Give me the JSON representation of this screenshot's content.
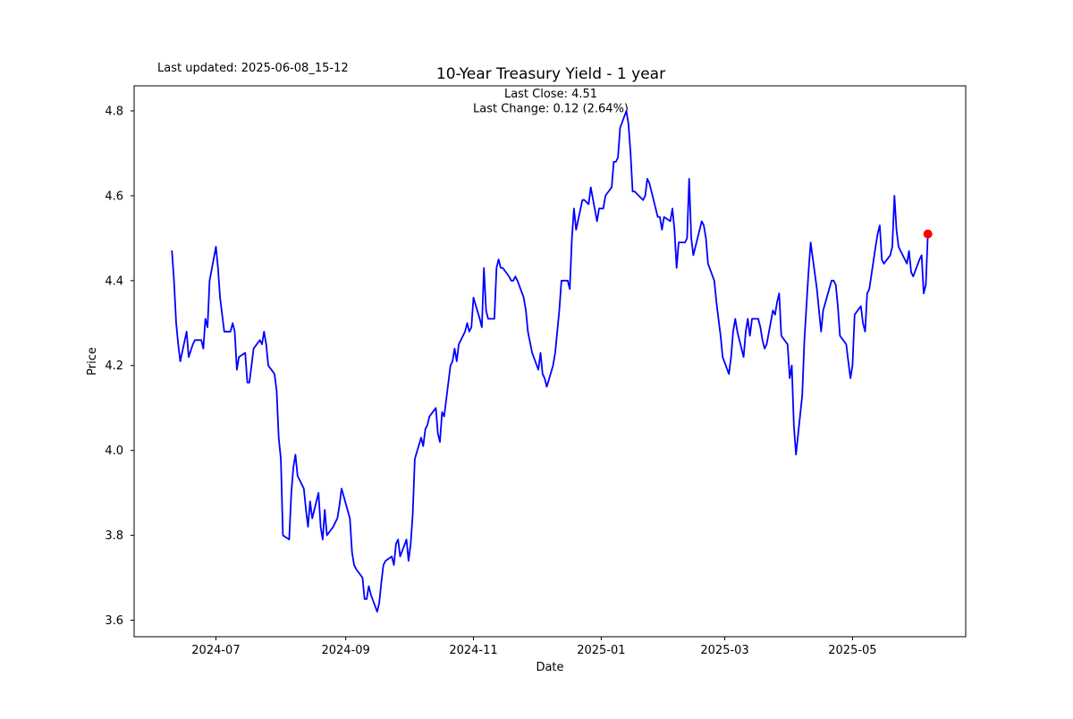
{
  "figure": {
    "last_updated": "Last updated: 2025-06-08_15-12"
  },
  "chart_data": {
    "type": "line",
    "title": "10-Year Treasury Yield - 1 year",
    "subtitle_lines": [
      "Last Close: 4.51",
      "Last Change: 0.12 (2.64%)"
    ],
    "xlabel": "Date",
    "ylabel": "Price",
    "last_close": 4.51,
    "last_change": 0.12,
    "last_change_pct": 2.64,
    "line_color": "#0000ff",
    "marker_color": "#ff0000",
    "grid": false,
    "legend": "none",
    "ylim": [
      3.561,
      4.859
    ],
    "x_margin": 0.05,
    "y_ticks": [
      3.6,
      3.8,
      4.0,
      4.2,
      4.4,
      4.6,
      4.8
    ],
    "x_ticks": [
      {
        "date": "2024-07-01",
        "label": "2024-07"
      },
      {
        "date": "2024-09-01",
        "label": "2024-09"
      },
      {
        "date": "2024-11-01",
        "label": "2024-11"
      },
      {
        "date": "2025-01-01",
        "label": "2025-01"
      },
      {
        "date": "2025-03-01",
        "label": "2025-03"
      },
      {
        "date": "2025-05-01",
        "label": "2025-05"
      }
    ],
    "series": [
      {
        "name": "10-Year Treasury Yield",
        "points": [
          [
            "2024-06-10",
            4.47
          ],
          [
            "2024-06-11",
            4.4
          ],
          [
            "2024-06-12",
            4.3
          ],
          [
            "2024-06-13",
            4.25
          ],
          [
            "2024-06-14",
            4.21
          ],
          [
            "2024-06-17",
            4.28
          ],
          [
            "2024-06-18",
            4.22
          ],
          [
            "2024-06-20",
            4.25
          ],
          [
            "2024-06-21",
            4.26
          ],
          [
            "2024-06-24",
            4.26
          ],
          [
            "2024-06-25",
            4.24
          ],
          [
            "2024-06-26",
            4.31
          ],
          [
            "2024-06-27",
            4.29
          ],
          [
            "2024-06-28",
            4.4
          ],
          [
            "2024-07-01",
            4.48
          ],
          [
            "2024-07-02",
            4.43
          ],
          [
            "2024-07-03",
            4.36
          ],
          [
            "2024-07-05",
            4.28
          ],
          [
            "2024-07-08",
            4.28
          ],
          [
            "2024-07-09",
            4.3
          ],
          [
            "2024-07-10",
            4.28
          ],
          [
            "2024-07-11",
            4.19
          ],
          [
            "2024-07-12",
            4.22
          ],
          [
            "2024-07-15",
            4.23
          ],
          [
            "2024-07-16",
            4.16
          ],
          [
            "2024-07-17",
            4.16
          ],
          [
            "2024-07-18",
            4.2
          ],
          [
            "2024-07-19",
            4.24
          ],
          [
            "2024-07-22",
            4.26
          ],
          [
            "2024-07-23",
            4.25
          ],
          [
            "2024-07-24",
            4.28
          ],
          [
            "2024-07-25",
            4.25
          ],
          [
            "2024-07-26",
            4.2
          ],
          [
            "2024-07-29",
            4.18
          ],
          [
            "2024-07-30",
            4.14
          ],
          [
            "2024-07-31",
            4.03
          ],
          [
            "2024-08-01",
            3.98
          ],
          [
            "2024-08-02",
            3.8
          ],
          [
            "2024-08-05",
            3.79
          ],
          [
            "2024-08-06",
            3.9
          ],
          [
            "2024-08-07",
            3.96
          ],
          [
            "2024-08-08",
            3.99
          ],
          [
            "2024-08-09",
            3.94
          ],
          [
            "2024-08-12",
            3.91
          ],
          [
            "2024-08-13",
            3.86
          ],
          [
            "2024-08-14",
            3.82
          ],
          [
            "2024-08-15",
            3.88
          ],
          [
            "2024-08-16",
            3.84
          ],
          [
            "2024-08-19",
            3.9
          ],
          [
            "2024-08-20",
            3.82
          ],
          [
            "2024-08-21",
            3.79
          ],
          [
            "2024-08-22",
            3.86
          ],
          [
            "2024-08-23",
            3.8
          ],
          [
            "2024-08-26",
            3.82
          ],
          [
            "2024-08-27",
            3.83
          ],
          [
            "2024-08-28",
            3.84
          ],
          [
            "2024-08-29",
            3.87
          ],
          [
            "2024-08-30",
            3.91
          ],
          [
            "2024-09-03",
            3.84
          ],
          [
            "2024-09-04",
            3.76
          ],
          [
            "2024-09-05",
            3.73
          ],
          [
            "2024-09-06",
            3.72
          ],
          [
            "2024-09-09",
            3.7
          ],
          [
            "2024-09-10",
            3.65
          ],
          [
            "2024-09-11",
            3.65
          ],
          [
            "2024-09-12",
            3.68
          ],
          [
            "2024-09-13",
            3.66
          ],
          [
            "2024-09-16",
            3.62
          ],
          [
            "2024-09-17",
            3.64
          ],
          [
            "2024-09-18",
            3.69
          ],
          [
            "2024-09-19",
            3.73
          ],
          [
            "2024-09-20",
            3.74
          ],
          [
            "2024-09-23",
            3.75
          ],
          [
            "2024-09-24",
            3.73
          ],
          [
            "2024-09-25",
            3.78
          ],
          [
            "2024-09-26",
            3.79
          ],
          [
            "2024-09-27",
            3.75
          ],
          [
            "2024-09-30",
            3.79
          ],
          [
            "2024-10-01",
            3.74
          ],
          [
            "2024-10-02",
            3.78
          ],
          [
            "2024-10-03",
            3.85
          ],
          [
            "2024-10-04",
            3.98
          ],
          [
            "2024-10-07",
            4.03
          ],
          [
            "2024-10-08",
            4.01
          ],
          [
            "2024-10-09",
            4.05
          ],
          [
            "2024-10-10",
            4.06
          ],
          [
            "2024-10-11",
            4.08
          ],
          [
            "2024-10-14",
            4.1
          ],
          [
            "2024-10-15",
            4.04
          ],
          [
            "2024-10-16",
            4.02
          ],
          [
            "2024-10-17",
            4.09
          ],
          [
            "2024-10-18",
            4.08
          ],
          [
            "2024-10-21",
            4.2
          ],
          [
            "2024-10-22",
            4.21
          ],
          [
            "2024-10-23",
            4.24
          ],
          [
            "2024-10-24",
            4.21
          ],
          [
            "2024-10-25",
            4.25
          ],
          [
            "2024-10-28",
            4.28
          ],
          [
            "2024-10-29",
            4.3
          ],
          [
            "2024-10-30",
            4.28
          ],
          [
            "2024-10-31",
            4.29
          ],
          [
            "2024-11-01",
            4.36
          ],
          [
            "2024-11-04",
            4.31
          ],
          [
            "2024-11-05",
            4.29
          ],
          [
            "2024-11-06",
            4.43
          ],
          [
            "2024-11-07",
            4.33
          ],
          [
            "2024-11-08",
            4.31
          ],
          [
            "2024-11-11",
            4.31
          ],
          [
            "2024-11-12",
            4.43
          ],
          [
            "2024-11-13",
            4.45
          ],
          [
            "2024-11-14",
            4.43
          ],
          [
            "2024-11-15",
            4.43
          ],
          [
            "2024-11-18",
            4.41
          ],
          [
            "2024-11-19",
            4.4
          ],
          [
            "2024-11-20",
            4.4
          ],
          [
            "2024-11-21",
            4.41
          ],
          [
            "2024-11-22",
            4.4
          ],
          [
            "2024-11-25",
            4.36
          ],
          [
            "2024-11-26",
            4.33
          ],
          [
            "2024-11-27",
            4.28
          ],
          [
            "2024-11-29",
            4.23
          ],
          [
            "2024-12-02",
            4.19
          ],
          [
            "2024-12-03",
            4.23
          ],
          [
            "2024-12-04",
            4.18
          ],
          [
            "2024-12-05",
            4.17
          ],
          [
            "2024-12-06",
            4.15
          ],
          [
            "2024-12-09",
            4.2
          ],
          [
            "2024-12-10",
            4.23
          ],
          [
            "2024-12-11",
            4.28
          ],
          [
            "2024-12-12",
            4.33
          ],
          [
            "2024-12-13",
            4.4
          ],
          [
            "2024-12-16",
            4.4
          ],
          [
            "2024-12-17",
            4.38
          ],
          [
            "2024-12-18",
            4.5
          ],
          [
            "2024-12-19",
            4.57
          ],
          [
            "2024-12-20",
            4.52
          ],
          [
            "2024-12-23",
            4.59
          ],
          [
            "2024-12-24",
            4.59
          ],
          [
            "2024-12-26",
            4.58
          ],
          [
            "2024-12-27",
            4.62
          ],
          [
            "2024-12-30",
            4.54
          ],
          [
            "2024-12-31",
            4.57
          ],
          [
            "2025-01-02",
            4.57
          ],
          [
            "2025-01-03",
            4.6
          ],
          [
            "2025-01-06",
            4.62
          ],
          [
            "2025-01-07",
            4.68
          ],
          [
            "2025-01-08",
            4.68
          ],
          [
            "2025-01-09",
            4.69
          ],
          [
            "2025-01-10",
            4.76
          ],
          [
            "2025-01-13",
            4.8
          ],
          [
            "2025-01-14",
            4.77
          ],
          [
            "2025-01-15",
            4.7
          ],
          [
            "2025-01-16",
            4.61
          ],
          [
            "2025-01-17",
            4.61
          ],
          [
            "2025-01-21",
            4.59
          ],
          [
            "2025-01-22",
            4.6
          ],
          [
            "2025-01-23",
            4.64
          ],
          [
            "2025-01-24",
            4.63
          ],
          [
            "2025-01-27",
            4.57
          ],
          [
            "2025-01-28",
            4.55
          ],
          [
            "2025-01-29",
            4.55
          ],
          [
            "2025-01-30",
            4.52
          ],
          [
            "2025-01-31",
            4.55
          ],
          [
            "2025-02-03",
            4.54
          ],
          [
            "2025-02-04",
            4.57
          ],
          [
            "2025-02-05",
            4.52
          ],
          [
            "2025-02-06",
            4.43
          ],
          [
            "2025-02-07",
            4.49
          ],
          [
            "2025-02-10",
            4.49
          ],
          [
            "2025-02-11",
            4.5
          ],
          [
            "2025-02-12",
            4.64
          ],
          [
            "2025-02-13",
            4.5
          ],
          [
            "2025-02-14",
            4.46
          ],
          [
            "2025-02-18",
            4.54
          ],
          [
            "2025-02-19",
            4.53
          ],
          [
            "2025-02-20",
            4.5
          ],
          [
            "2025-02-21",
            4.44
          ],
          [
            "2025-02-24",
            4.4
          ],
          [
            "2025-02-25",
            4.35
          ],
          [
            "2025-02-26",
            4.31
          ],
          [
            "2025-02-27",
            4.27
          ],
          [
            "2025-02-28",
            4.22
          ],
          [
            "2025-03-03",
            4.18
          ],
          [
            "2025-03-04",
            4.22
          ],
          [
            "2025-03-05",
            4.28
          ],
          [
            "2025-03-06",
            4.31
          ],
          [
            "2025-03-07",
            4.28
          ],
          [
            "2025-03-10",
            4.22
          ],
          [
            "2025-03-11",
            4.28
          ],
          [
            "2025-03-12",
            4.31
          ],
          [
            "2025-03-13",
            4.27
          ],
          [
            "2025-03-14",
            4.31
          ],
          [
            "2025-03-17",
            4.31
          ],
          [
            "2025-03-18",
            4.29
          ],
          [
            "2025-03-19",
            4.26
          ],
          [
            "2025-03-20",
            4.24
          ],
          [
            "2025-03-21",
            4.25
          ],
          [
            "2025-03-24",
            4.33
          ],
          [
            "2025-03-25",
            4.32
          ],
          [
            "2025-03-26",
            4.35
          ],
          [
            "2025-03-27",
            4.37
          ],
          [
            "2025-03-28",
            4.27
          ],
          [
            "2025-03-31",
            4.25
          ],
          [
            "2025-04-01",
            4.17
          ],
          [
            "2025-04-02",
            4.2
          ],
          [
            "2025-04-03",
            4.06
          ],
          [
            "2025-04-04",
            3.99
          ],
          [
            "2025-04-07",
            4.13
          ],
          [
            "2025-04-08",
            4.26
          ],
          [
            "2025-04-09",
            4.34
          ],
          [
            "2025-04-10",
            4.42
          ],
          [
            "2025-04-11",
            4.49
          ],
          [
            "2025-04-14",
            4.38
          ],
          [
            "2025-04-15",
            4.33
          ],
          [
            "2025-04-16",
            4.28
          ],
          [
            "2025-04-17",
            4.33
          ],
          [
            "2025-04-21",
            4.4
          ],
          [
            "2025-04-22",
            4.4
          ],
          [
            "2025-04-23",
            4.39
          ],
          [
            "2025-04-24",
            4.34
          ],
          [
            "2025-04-25",
            4.27
          ],
          [
            "2025-04-28",
            4.25
          ],
          [
            "2025-04-29",
            4.21
          ],
          [
            "2025-04-30",
            4.17
          ],
          [
            "2025-05-01",
            4.2
          ],
          [
            "2025-05-02",
            4.32
          ],
          [
            "2025-05-05",
            4.34
          ],
          [
            "2025-05-06",
            4.3
          ],
          [
            "2025-05-07",
            4.28
          ],
          [
            "2025-05-08",
            4.37
          ],
          [
            "2025-05-09",
            4.38
          ],
          [
            "2025-05-12",
            4.48
          ],
          [
            "2025-05-13",
            4.51
          ],
          [
            "2025-05-14",
            4.53
          ],
          [
            "2025-05-15",
            4.45
          ],
          [
            "2025-05-16",
            4.44
          ],
          [
            "2025-05-19",
            4.46
          ],
          [
            "2025-05-20",
            4.48
          ],
          [
            "2025-05-21",
            4.6
          ],
          [
            "2025-05-22",
            4.52
          ],
          [
            "2025-05-23",
            4.48
          ],
          [
            "2025-05-27",
            4.44
          ],
          [
            "2025-05-28",
            4.47
          ],
          [
            "2025-05-29",
            4.42
          ],
          [
            "2025-05-30",
            4.41
          ],
          [
            "2025-06-02",
            4.45
          ],
          [
            "2025-06-03",
            4.46
          ],
          [
            "2025-06-04",
            4.37
          ],
          [
            "2025-06-05",
            4.39
          ],
          [
            "2025-06-06",
            4.51
          ]
        ]
      }
    ]
  }
}
